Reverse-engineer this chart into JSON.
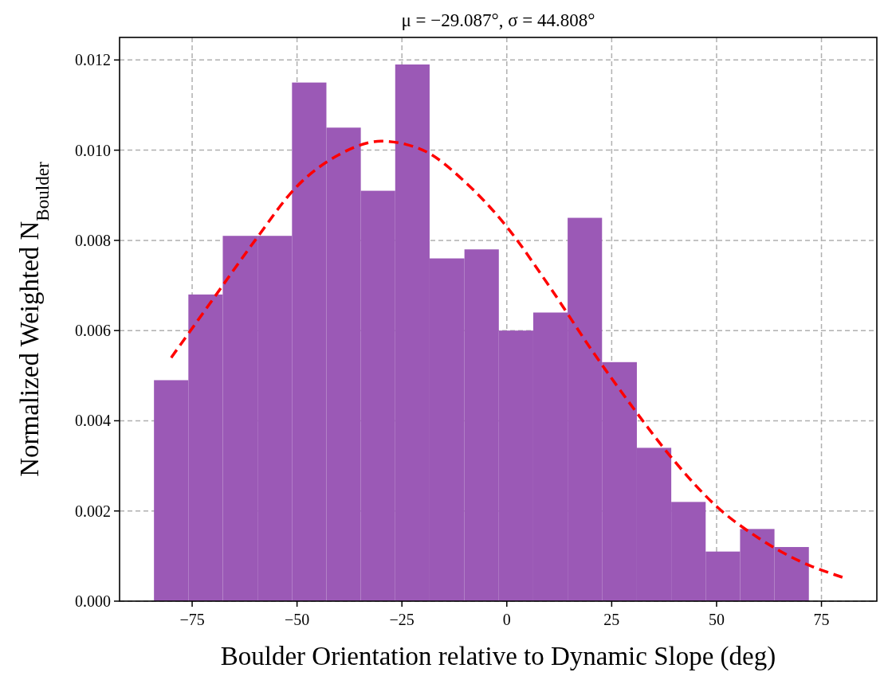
{
  "chart_data": {
    "type": "histogram",
    "title": "μ = −29.087°,  σ = 44.808°",
    "xlabel": "Boulder Orientation relative to Dynamic Slope (deg)",
    "ylabel": "Normalized Weighted N$_{Boulder}$",
    "bins": [
      -84.1,
      -75.9,
      -67.7,
      -59.4,
      -51.2,
      -43.0,
      -34.8,
      -26.6,
      -18.4,
      -10.1,
      -1.9,
      6.3,
      14.5,
      22.7,
      31.0,
      39.2,
      47.4,
      55.6,
      63.8,
      72.0
    ],
    "values": [
      0.0049,
      0.0068,
      0.0081,
      0.0081,
      0.0115,
      0.0105,
      0.0091,
      0.0119,
      0.0076,
      0.0078,
      0.006,
      0.0064,
      0.0085,
      0.0053,
      0.0034,
      0.0022,
      0.0011,
      0.0016,
      0.0012
    ],
    "color": "#9b59b6",
    "series": [
      {
        "type": "line",
        "color": "#ff0000",
        "line_style": "dashed",
        "x": [
          -80,
          -70,
          -60,
          -50,
          -40,
          -30,
          -20,
          -10,
          0,
          10,
          20,
          30,
          40,
          50,
          60,
          70,
          80
        ],
        "values": [
          0.0054,
          0.0067,
          0.008,
          0.0092,
          0.0099,
          0.0102,
          0.01,
          0.0093,
          0.0083,
          0.007,
          0.0056,
          0.0043,
          0.0031,
          0.0021,
          0.0014,
          0.00088,
          0.00053
        ]
      }
    ],
    "xlim": [
      -92.3,
      88.2
    ],
    "xticks": [
      {
        "value": -75,
        "label": "−75"
      },
      {
        "value": -50,
        "label": "−50"
      },
      {
        "value": -25,
        "label": "−25"
      },
      0,
      25,
      50,
      75
    ],
    "ylim": [
      0,
      0.0125
    ],
    "yticks": [
      {
        "value": 0,
        "label": "0.000"
      },
      {
        "value": 0.002,
        "label": "0.002"
      },
      {
        "value": 0.004,
        "label": "0.004"
      },
      {
        "value": 0.006,
        "label": "0.006"
      },
      {
        "value": 0.008,
        "label": "0.008"
      },
      {
        "value": 0.01,
        "label": "0.010"
      },
      {
        "value": 0.012,
        "label": "0.012"
      }
    ],
    "grid": true
  }
}
